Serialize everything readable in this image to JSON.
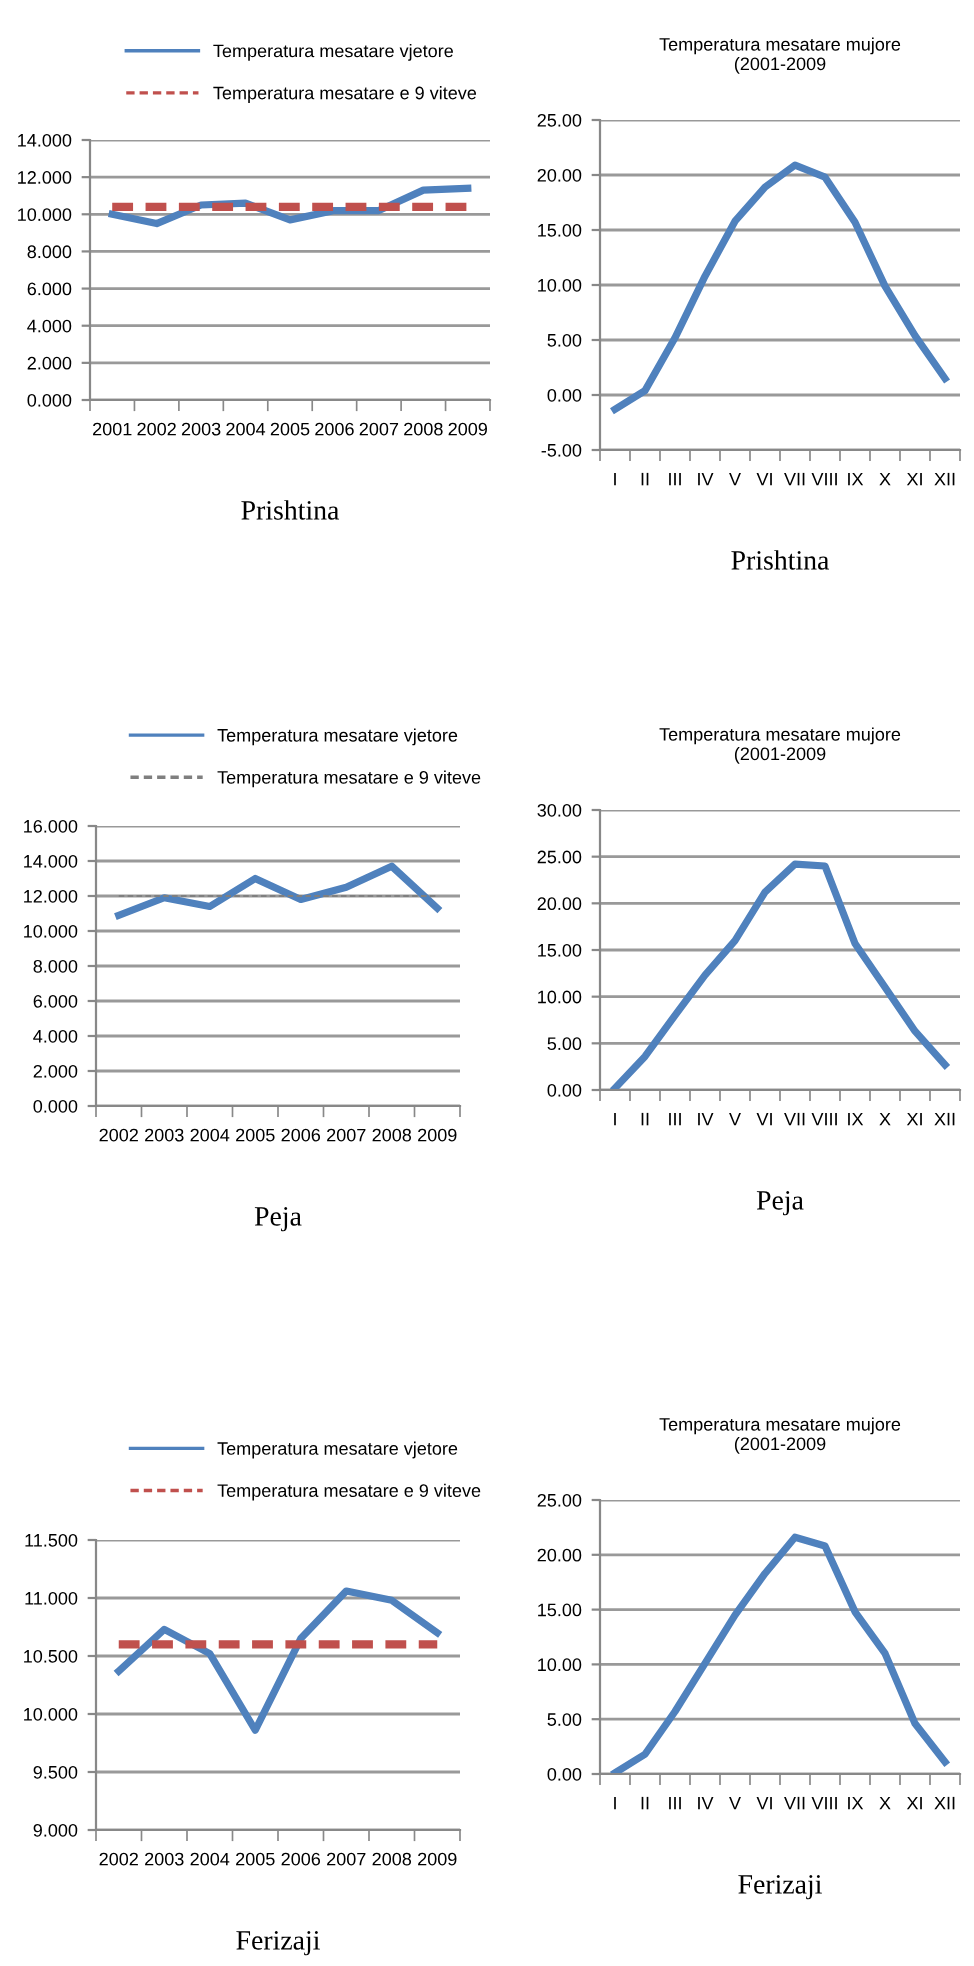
{
  "chart_data": [
    {
      "type": "line",
      "categories": [
        "2001",
        "2002",
        "2003",
        "2004",
        "2005",
        "2006",
        "2007",
        "2008",
        "2009"
      ],
      "xlabel": "Prishtina",
      "legend": "top",
      "grid": "y",
      "ylim": [
        0,
        14
      ],
      "yticks": [
        {
          "value": 0,
          "label": "0.000"
        },
        {
          "value": 2,
          "label": "2.000"
        },
        {
          "value": 4,
          "label": "4.000"
        },
        {
          "value": 6,
          "label": "6.000"
        },
        {
          "value": 8,
          "label": "8.000"
        },
        {
          "value": 10,
          "label": "10.000"
        },
        {
          "value": 12,
          "label": "12.000"
        },
        {
          "value": 14,
          "label": "14.000"
        }
      ],
      "series": [
        {
          "name": "Temperatura mesatare vjetore",
          "color": "#4f81bd",
          "line_style": "solid",
          "values": [
            10.0,
            9.5,
            10.5,
            10.6,
            9.7,
            10.2,
            10.2,
            11.3,
            11.4
          ]
        },
        {
          "name": "Temperatura mesatare e 9 viteve",
          "color": "#c0504d",
          "line_style": "dashed",
          "values": [
            10.4,
            10.4,
            10.4,
            10.4,
            10.4,
            10.4,
            10.4,
            10.4,
            10.4
          ]
        }
      ]
    },
    {
      "type": "line",
      "title": "Temperatura mesatare mujore\n(2001-2009",
      "categories": [
        "I",
        "II",
        "III",
        "IV",
        "V",
        "VI",
        "VII",
        "VIII",
        "IX",
        "X",
        "XI",
        "XII"
      ],
      "xlabel": "Prishtina",
      "grid": "y",
      "ylim": [
        -5,
        25
      ],
      "yticks": [
        {
          "value": -5,
          "label": "-5.00"
        },
        {
          "value": 0,
          "label": "0.00"
        },
        {
          "value": 5,
          "label": "5.00"
        },
        {
          "value": 10,
          "label": "10.00"
        },
        {
          "value": 15,
          "label": "15.00"
        },
        {
          "value": 20,
          "label": "20.00"
        },
        {
          "value": 25,
          "label": "25.00"
        }
      ],
      "series": [
        {
          "color": "#4f81bd",
          "line_style": "solid",
          "values": [
            -1.3,
            0.4,
            5.2,
            10.8,
            15.8,
            18.9,
            20.9,
            19.8,
            15.7,
            9.9,
            5.4,
            1.5
          ]
        }
      ]
    },
    {
      "type": "line",
      "categories": [
        "2002",
        "2003",
        "2004",
        "2005",
        "2006",
        "2007",
        "2008",
        "2009"
      ],
      "xlabel": "Peja",
      "legend": "top",
      "grid": "y",
      "ylim": [
        0,
        16
      ],
      "yticks": [
        {
          "value": 0,
          "label": "0.000"
        },
        {
          "value": 2,
          "label": "2.000"
        },
        {
          "value": 4,
          "label": "4.000"
        },
        {
          "value": 6,
          "label": "6.000"
        },
        {
          "value": 8,
          "label": "8.000"
        },
        {
          "value": 10,
          "label": "10.000"
        },
        {
          "value": 12,
          "label": "12.000"
        },
        {
          "value": 14,
          "label": "14.000"
        },
        {
          "value": 16,
          "label": "16.000"
        }
      ],
      "series": [
        {
          "name": "Temperatura mesatare vjetore",
          "color": "#4f81bd",
          "line_style": "solid",
          "values": [
            10.9,
            11.9,
            11.4,
            13.0,
            11.8,
            12.5,
            13.7,
            11.3
          ]
        },
        {
          "name": "Temperatura mesatare e 9 viteve",
          "color": "#7f7f7f",
          "line_style": "dashed",
          "values": [
            12.0,
            12.0,
            12.0,
            12.0,
            12.0,
            12.0,
            12.0,
            12.0
          ]
        }
      ]
    },
    {
      "type": "line",
      "title": "Temperatura mesatare mujore\n(2001-2009",
      "categories": [
        "I",
        "II",
        "III",
        "IV",
        "V",
        "VI",
        "VII",
        "VIII",
        "IX",
        "X",
        "XI",
        "XII"
      ],
      "xlabel": "Peja",
      "grid": "y",
      "ylim": [
        0,
        30
      ],
      "yticks": [
        {
          "value": 0,
          "label": "0.00"
        },
        {
          "value": 5,
          "label": "5.00"
        },
        {
          "value": 10,
          "label": "10.00"
        },
        {
          "value": 15,
          "label": "15.00"
        },
        {
          "value": 20,
          "label": "20.00"
        },
        {
          "value": 25,
          "label": "25.00"
        },
        {
          "value": 30,
          "label": "30.00"
        }
      ],
      "series": [
        {
          "color": "#4f81bd",
          "line_style": "solid",
          "values": [
            0.2,
            3.6,
            8.0,
            12.3,
            16.0,
            21.2,
            24.2,
            24.0,
            15.7,
            11.0,
            6.3,
            2.7
          ]
        }
      ]
    },
    {
      "type": "line",
      "categories": [
        "2002",
        "2003",
        "2004",
        "2005",
        "2006",
        "2007",
        "2008",
        "2009"
      ],
      "xlabel": "Ferizaji",
      "legend": "top",
      "grid": "y",
      "ylim": [
        9,
        11.5
      ],
      "yticks": [
        {
          "value": 9,
          "label": "9.000"
        },
        {
          "value": 9.5,
          "label": "9.500"
        },
        {
          "value": 10,
          "label": "10.000"
        },
        {
          "value": 10.5,
          "label": "10.500"
        },
        {
          "value": 11,
          "label": "11.000"
        },
        {
          "value": 11.5,
          "label": "11.500"
        }
      ],
      "series": [
        {
          "name": "Temperatura mesatare vjetore",
          "color": "#4f81bd",
          "line_style": "solid",
          "values": [
            10.37,
            10.73,
            10.52,
            9.86,
            10.65,
            11.06,
            10.98,
            10.7
          ]
        },
        {
          "name": "Temperatura mesatare e 9 viteve",
          "color": "#c0504d",
          "line_style": "dashed",
          "values": [
            10.6,
            10.6,
            10.6,
            10.6,
            10.6,
            10.6,
            10.6,
            10.6
          ]
        }
      ]
    },
    {
      "type": "line",
      "title": "Temperatura mesatare mujore\n(2001-2009",
      "categories": [
        "I",
        "II",
        "III",
        "IV",
        "V",
        "VI",
        "VII",
        "VIII",
        "IX",
        "X",
        "XI",
        "XII"
      ],
      "xlabel": "Ferizaji",
      "grid": "y",
      "ylim": [
        0,
        25
      ],
      "yticks": [
        {
          "value": 0,
          "label": "0.00"
        },
        {
          "value": 5,
          "label": "5.00"
        },
        {
          "value": 10,
          "label": "10.00"
        },
        {
          "value": 15,
          "label": "15.00"
        },
        {
          "value": 20,
          "label": "20.00"
        },
        {
          "value": 25,
          "label": "25.00"
        }
      ],
      "series": [
        {
          "color": "#4f81bd",
          "line_style": "solid",
          "values": [
            0.1,
            1.8,
            5.7,
            10.1,
            14.5,
            18.3,
            21.6,
            20.8,
            14.8,
            11.0,
            4.6,
            1.1
          ]
        }
      ]
    }
  ]
}
